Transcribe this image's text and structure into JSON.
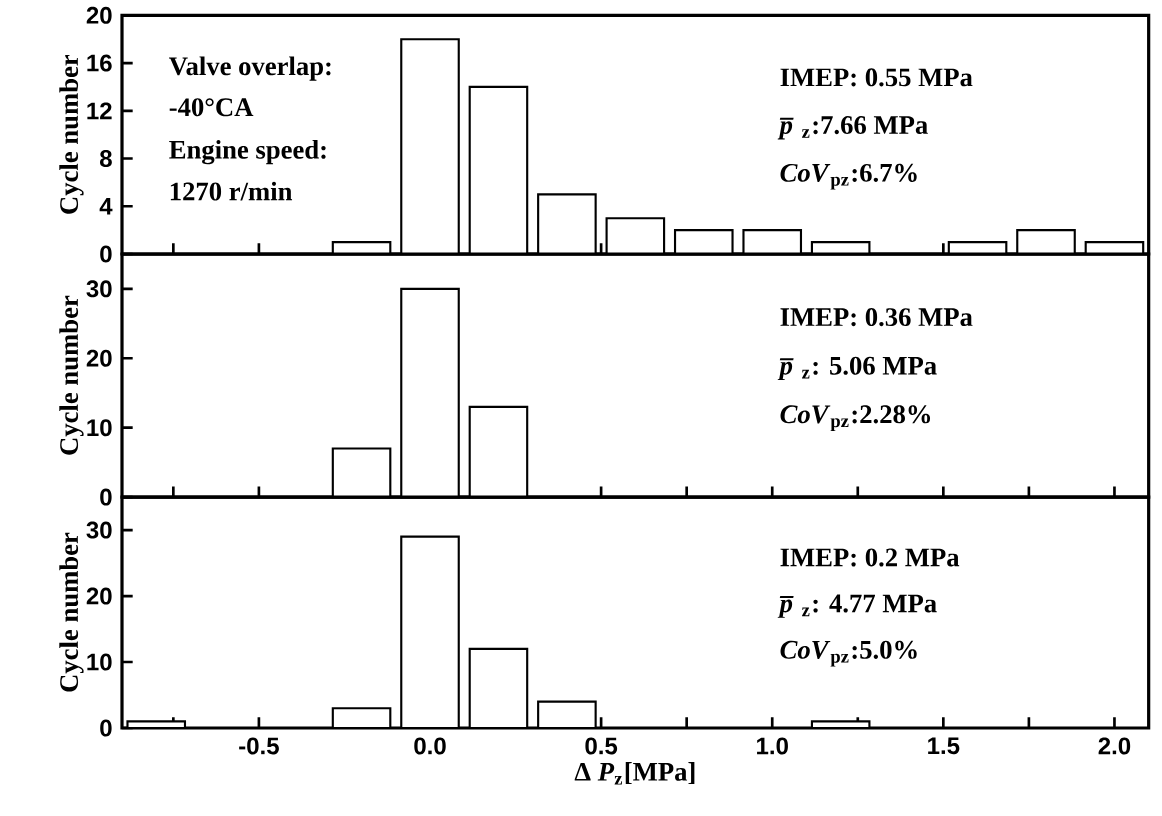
{
  "chart_data": [
    {
      "type": "histogram",
      "bins": [
        -0.9,
        -0.7,
        -0.5,
        -0.3,
        -0.1,
        0.1,
        0.3,
        0.5,
        0.7,
        0.9,
        1.1,
        1.3,
        1.5,
        1.7,
        1.9,
        2.1
      ],
      "values": [
        0,
        0,
        0,
        1,
        18,
        14,
        5,
        3,
        2,
        2,
        1,
        0,
        1,
        2,
        1
      ],
      "color": "#ffffff",
      "xlim": [
        -0.9,
        2.1
      ],
      "ylim": [
        0,
        20
      ],
      "yticks": [
        0,
        4,
        8,
        12,
        16,
        20
      ],
      "xticks": [
        {
          "value": -0.75,
          "label": null
        },
        {
          "value": -0.5,
          "label": null
        },
        {
          "value": -0.25,
          "label": null
        },
        {
          "value": 0,
          "label": null
        },
        {
          "value": 0.25,
          "label": null
        },
        {
          "value": 0.5,
          "label": null
        },
        {
          "value": 0.75,
          "label": null
        },
        {
          "value": 1,
          "label": null
        },
        {
          "value": 1.25,
          "label": null
        },
        {
          "value": 1.5,
          "label": null
        },
        {
          "value": 1.75,
          "label": null
        },
        {
          "value": 2,
          "label": null
        }
      ],
      "tick_labels": "y",
      "ylabel": "Cycle number",
      "annotations": [
        "Valve overlap:",
        "-40°CA",
        "Engine speed:",
        "1270 r/min",
        "IMEP: 0.55 MPa",
        "*p̅*$_{z}$:7.66 MPa",
        "*CoV*$_{pz}$:6.7%"
      ]
    },
    {
      "type": "histogram",
      "bins": [
        -0.9,
        -0.7,
        -0.5,
        -0.3,
        -0.1,
        0.1,
        0.3,
        0.5,
        0.7,
        0.9,
        1.1,
        1.3,
        1.5,
        1.7,
        1.9,
        2.1
      ],
      "values": [
        0,
        0,
        0,
        7,
        30,
        13,
        0,
        0,
        0,
        0,
        0,
        0,
        0,
        0,
        0
      ],
      "color": "#ffffff",
      "xlim": [
        -0.9,
        2.1
      ],
      "ylim": [
        0,
        35
      ],
      "yticks": [
        0,
        10,
        20,
        30
      ],
      "xticks": [
        {
          "value": -0.75,
          "label": null
        },
        {
          "value": -0.5,
          "label": null
        },
        {
          "value": -0.25,
          "label": null
        },
        {
          "value": 0,
          "label": null
        },
        {
          "value": 0.25,
          "label": null
        },
        {
          "value": 0.5,
          "label": null
        },
        {
          "value": 0.75,
          "label": null
        },
        {
          "value": 1,
          "label": null
        },
        {
          "value": 1.25,
          "label": null
        },
        {
          "value": 1.5,
          "label": null
        },
        {
          "value": 1.75,
          "label": null
        },
        {
          "value": 2,
          "label": null
        }
      ],
      "tick_labels": "y",
      "ylabel": "Cycle number",
      "annotations": [
        "IMEP: 0.36 MPa",
        "*p̅*$_{z}$: 5.06 MPa",
        "*CoV*$_{pz}$:2.28%"
      ]
    },
    {
      "type": "histogram",
      "bins": [
        -0.9,
        -0.7,
        -0.5,
        -0.3,
        -0.1,
        0.1,
        0.3,
        0.5,
        0.7,
        0.9,
        1.1,
        1.3,
        1.5,
        1.7,
        1.9,
        2.1
      ],
      "values": [
        1,
        0,
        0,
        3,
        29,
        12,
        4,
        0,
        0,
        0,
        1,
        0,
        0,
        0,
        0
      ],
      "color": "#ffffff",
      "xlim": [
        -0.9,
        2.1
      ],
      "ylim": [
        0,
        35
      ],
      "yticks": [
        0,
        10,
        20,
        30
      ],
      "xticks": [
        {
          "value": -0.75,
          "label": null
        },
        {
          "value": -0.5,
          "label": "-0.5"
        },
        {
          "value": -0.25,
          "label": null
        },
        {
          "value": 0,
          "label": "0.0"
        },
        {
          "value": 0.25,
          "label": null
        },
        {
          "value": 0.5,
          "label": "0.5"
        },
        {
          "value": 0.75,
          "label": null
        },
        {
          "value": 1,
          "label": "1.0"
        },
        {
          "value": 1.25,
          "label": null
        },
        {
          "value": 1.5,
          "label": "1.5"
        },
        {
          "value": 1.75,
          "label": null
        },
        {
          "value": 2,
          "label": "2.0"
        }
      ],
      "ylabel": "Cycle number",
      "xlabel": "Δ *P*$_{z}$[MPa]",
      "annotations": [
        "IMEP: 0.2 MPa",
        "*p̅*$_{z}$: 4.77 MPa",
        "*CoV*$_{pz}$:5.0%"
      ]
    }
  ]
}
